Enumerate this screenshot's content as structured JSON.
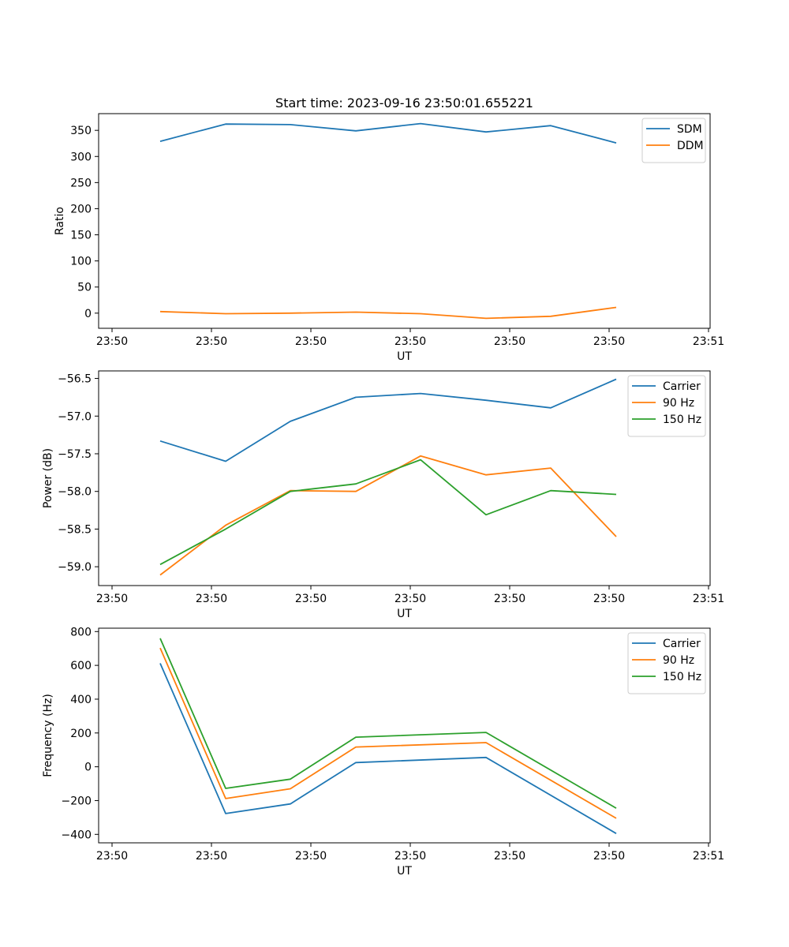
{
  "figure_title": "Start time: 2023-09-16 23:50:01.655221",
  "chart_data": [
    {
      "type": "line",
      "title": "Start time: 2023-09-16 23:50:01.655221",
      "xlabel": "UT",
      "ylabel": "Ratio",
      "x_ticks": [
        "23:50",
        "23:50",
        "23:50",
        "23:50",
        "23:50",
        "23:50",
        "23:51"
      ],
      "ylim": [
        -29,
        382
      ],
      "y_ticks": [
        0,
        50,
        100,
        150,
        200,
        250,
        300,
        350
      ],
      "legend": "top-right",
      "series": [
        {
          "name": "SDM",
          "color": "#1f77b4",
          "values": [
            329,
            362,
            361,
            349,
            363,
            347,
            359,
            326
          ]
        },
        {
          "name": "DDM",
          "color": "#ff7f0e",
          "values": [
            3,
            -1,
            0,
            2,
            -1,
            -10,
            -6,
            11
          ]
        }
      ]
    },
    {
      "type": "line",
      "title": "",
      "xlabel": "UT",
      "ylabel": "Power (dB)",
      "x_ticks": [
        "23:50",
        "23:50",
        "23:50",
        "23:50",
        "23:50",
        "23:50",
        "23:51"
      ],
      "ylim": [
        -59.25,
        -56.4
      ],
      "y_ticks": [
        -59.0,
        -58.5,
        -58.0,
        -57.5,
        -57.0,
        -56.5
      ],
      "legend": "top-right",
      "series": [
        {
          "name": "Carrier",
          "color": "#1f77b4",
          "values": [
            -57.33,
            -57.6,
            -57.07,
            -56.75,
            -56.7,
            -56.79,
            -56.89,
            -56.51
          ]
        },
        {
          "name": "90 Hz",
          "color": "#ff7f0e",
          "values": [
            -59.11,
            -58.45,
            -57.99,
            -58.0,
            -57.53,
            -57.78,
            -57.69,
            -58.6
          ]
        },
        {
          "name": "150 Hz",
          "color": "#2ca02c",
          "values": [
            -58.97,
            -58.5,
            -58.0,
            -57.9,
            -57.58,
            -58.31,
            -57.99,
            -58.04
          ]
        }
      ]
    },
    {
      "type": "line",
      "title": "",
      "xlabel": "UT",
      "ylabel": "Frequency (Hz)",
      "x_ticks": [
        "23:50",
        "23:50",
        "23:50",
        "23:50",
        "23:50",
        "23:50",
        "23:51"
      ],
      "ylim": [
        -450,
        820
      ],
      "y_ticks": [
        -400,
        -200,
        0,
        200,
        400,
        600,
        800
      ],
      "legend": "top-right",
      "series": [
        {
          "name": "Carrier",
          "color": "#1f77b4",
          "values": [
            612,
            -277,
            -220,
            25,
            null,
            55,
            null,
            -395
          ]
        },
        {
          "name": "90 Hz",
          "color": "#ff7f0e",
          "values": [
            703,
            -188,
            -130,
            117,
            null,
            143,
            null,
            -305
          ]
        },
        {
          "name": "150 Hz",
          "color": "#2ca02c",
          "values": [
            760,
            -128,
            -73,
            175,
            null,
            203,
            null,
            -245
          ]
        }
      ]
    }
  ]
}
